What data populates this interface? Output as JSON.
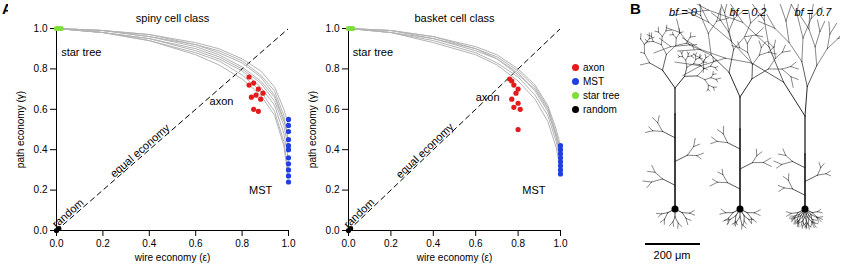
{
  "chart_data": [
    {
      "type": "scatter",
      "title": "spiny cell class",
      "x_label": "wire economy (ε)",
      "y_label": "path economy (γ)",
      "xlim": [
        0,
        1
      ],
      "ylim": [
        0,
        1
      ],
      "xticks": [
        {
          "value": 0,
          "label": "0.0"
        },
        {
          "value": 0.2,
          "label": "0.2"
        },
        {
          "value": 0.4,
          "label": "0.4"
        },
        {
          "value": 0.6,
          "label": "0.6"
        },
        {
          "value": 0.8,
          "label": "0.8"
        },
        {
          "value": 1,
          "label": "1.0"
        }
      ],
      "yticks": [
        {
          "value": 0,
          "label": "0.0"
        },
        {
          "value": 0.2,
          "label": "0.2"
        },
        {
          "value": 0.4,
          "label": "0.4"
        },
        {
          "value": 0.6,
          "label": "0.6"
        },
        {
          "value": 0.8,
          "label": "0.8"
        },
        {
          "value": 1,
          "label": "1.0"
        }
      ],
      "series": [
        {
          "type": "line",
          "color": "#000000",
          "line_style": "dashed",
          "x": [
            0,
            1
          ],
          "y": [
            0,
            1
          ]
        },
        {
          "type": "line",
          "color": "#b3b3b3",
          "x": [
            0,
            0.2,
            0.4,
            0.6,
            0.7,
            0.8,
            0.88,
            0.94,
            0.98,
            1
          ],
          "y": [
            1,
            0.99,
            0.97,
            0.93,
            0.9,
            0.85,
            0.79,
            0.71,
            0.6,
            0.52
          ]
        },
        {
          "type": "line",
          "color": "#b3b3b3",
          "x": [
            0,
            0.2,
            0.4,
            0.6,
            0.7,
            0.8,
            0.88,
            0.94,
            0.98,
            1
          ],
          "y": [
            1,
            0.99,
            0.96,
            0.92,
            0.88,
            0.83,
            0.76,
            0.67,
            0.55,
            0.45
          ]
        },
        {
          "type": "line",
          "color": "#b3b3b3",
          "x": [
            0,
            0.2,
            0.4,
            0.6,
            0.7,
            0.8,
            0.88,
            0.94,
            0.98,
            1
          ],
          "y": [
            1,
            0.98,
            0.95,
            0.9,
            0.86,
            0.8,
            0.73,
            0.64,
            0.52,
            0.4
          ]
        },
        {
          "type": "line",
          "color": "#b3b3b3",
          "x": [
            0,
            0.2,
            0.4,
            0.6,
            0.7,
            0.8,
            0.88,
            0.94,
            0.98,
            1
          ],
          "y": [
            1,
            0.98,
            0.95,
            0.89,
            0.85,
            0.79,
            0.71,
            0.62,
            0.48,
            0.35
          ]
        },
        {
          "type": "line",
          "color": "#b3b3b3",
          "x": [
            0,
            0.2,
            0.4,
            0.6,
            0.7,
            0.8,
            0.88,
            0.94,
            0.98,
            1
          ],
          "y": [
            1,
            0.98,
            0.94,
            0.88,
            0.84,
            0.77,
            0.69,
            0.59,
            0.44,
            0.28
          ]
        },
        {
          "type": "line",
          "color": "#b3b3b3",
          "x": [
            0,
            0.2,
            0.4,
            0.6,
            0.7,
            0.8,
            0.88,
            0.94,
            0.98,
            1
          ],
          "y": [
            1,
            0.99,
            0.96,
            0.91,
            0.87,
            0.81,
            0.74,
            0.66,
            0.54,
            0.48
          ]
        },
        {
          "type": "line",
          "color": "#b3b3b3",
          "x": [
            0,
            0.2,
            0.4,
            0.6,
            0.7,
            0.8,
            0.88,
            0.94,
            0.98,
            1
          ],
          "y": [
            1,
            0.98,
            0.94,
            0.87,
            0.82,
            0.75,
            0.67,
            0.57,
            0.42,
            0.24
          ]
        },
        {
          "type": "line",
          "color": "#b3b3b3",
          "x": [
            0,
            0.2,
            0.4,
            0.6,
            0.7,
            0.8,
            0.88,
            0.94,
            0.98,
            1
          ],
          "y": [
            1,
            0.99,
            0.97,
            0.92,
            0.89,
            0.84,
            0.77,
            0.69,
            0.57,
            0.43
          ]
        },
        {
          "name": "axon",
          "type": "scatter",
          "color": "#e41a1c",
          "x": [
            0.83,
            0.85,
            0.87,
            0.86,
            0.84,
            0.88,
            0.89,
            0.85,
            0.87,
            0.83
          ],
          "y": [
            0.76,
            0.73,
            0.7,
            0.67,
            0.66,
            0.65,
            0.68,
            0.6,
            0.59,
            0.72
          ]
        },
        {
          "name": "MST",
          "type": "scatter",
          "color": "#1f3fe0",
          "x": [
            1,
            1,
            1,
            1,
            1,
            1,
            1,
            1,
            1,
            1,
            1
          ],
          "y": [
            0.55,
            0.52,
            0.49,
            0.45,
            0.42,
            0.4,
            0.36,
            0.33,
            0.3,
            0.27,
            0.24
          ]
        },
        {
          "name": "star tree",
          "type": "scatter",
          "color": "#7ddf3a",
          "x": [
            0,
            0.01,
            0.02
          ],
          "y": [
            1,
            1,
            1
          ]
        },
        {
          "name": "random",
          "type": "scatter",
          "color": "#000000",
          "x": [
            0,
            0.01
          ],
          "y": [
            0,
            0.01
          ]
        }
      ],
      "annotations": [
        {
          "text": "star tree",
          "x": 0.02,
          "y": 0.88
        },
        {
          "text": "random",
          "x": 0.05,
          "y": 0.05
        },
        {
          "text": "axon",
          "x": 0.66,
          "y": 0.64
        },
        {
          "text": "MST",
          "x": 0.83,
          "y": 0.2
        },
        {
          "text": "equal economy",
          "x": 0.36,
          "y": 0.36
        }
      ]
    },
    {
      "type": "scatter",
      "title": "basket cell class",
      "x_label": "wire economy (ε)",
      "y_label": "path economy (γ)",
      "xlim": [
        0,
        1
      ],
      "ylim": [
        0,
        1
      ],
      "xticks": [
        {
          "value": 0,
          "label": "0.0"
        },
        {
          "value": 0.2,
          "label": "0.2"
        },
        {
          "value": 0.4,
          "label": "0.4"
        },
        {
          "value": 0.6,
          "label": "0.6"
        },
        {
          "value": 0.8,
          "label": "0.8"
        },
        {
          "value": 1,
          "label": "1.0"
        }
      ],
      "yticks": [
        {
          "value": 0,
          "label": "0.0"
        },
        {
          "value": 0.2,
          "label": "0.2"
        },
        {
          "value": 0.4,
          "label": "0.4"
        },
        {
          "value": 0.6,
          "label": "0.6"
        },
        {
          "value": 0.8,
          "label": "0.8"
        },
        {
          "value": 1,
          "label": "1.0"
        }
      ],
      "legend": "right",
      "series": [
        {
          "type": "line",
          "color": "#000000",
          "line_style": "dashed",
          "x": [
            0,
            1
          ],
          "y": [
            0,
            1
          ]
        },
        {
          "type": "line",
          "color": "#b3b3b3",
          "x": [
            0,
            0.2,
            0.4,
            0.6,
            0.7,
            0.8,
            0.88,
            0.94,
            0.98,
            1
          ],
          "y": [
            1,
            0.99,
            0.96,
            0.91,
            0.87,
            0.8,
            0.72,
            0.62,
            0.5,
            0.42
          ]
        },
        {
          "type": "line",
          "color": "#b3b3b3",
          "x": [
            0,
            0.2,
            0.4,
            0.6,
            0.7,
            0.8,
            0.88,
            0.94,
            0.98,
            1
          ],
          "y": [
            1,
            0.98,
            0.95,
            0.89,
            0.85,
            0.78,
            0.69,
            0.59,
            0.47,
            0.38
          ]
        },
        {
          "type": "line",
          "color": "#b3b3b3",
          "x": [
            0,
            0.2,
            0.4,
            0.6,
            0.7,
            0.8,
            0.88,
            0.94,
            0.98,
            1
          ],
          "y": [
            1,
            0.98,
            0.94,
            0.88,
            0.83,
            0.76,
            0.67,
            0.57,
            0.44,
            0.34
          ]
        },
        {
          "type": "line",
          "color": "#b3b3b3",
          "x": [
            0,
            0.2,
            0.4,
            0.6,
            0.7,
            0.8,
            0.88,
            0.94,
            0.98,
            1
          ],
          "y": [
            1,
            0.99,
            0.96,
            0.9,
            0.86,
            0.79,
            0.71,
            0.61,
            0.48,
            0.4
          ]
        },
        {
          "type": "line",
          "color": "#b3b3b3",
          "x": [
            0,
            0.2,
            0.4,
            0.6,
            0.7,
            0.8,
            0.88,
            0.94,
            0.98,
            1
          ],
          "y": [
            1,
            0.98,
            0.93,
            0.87,
            0.82,
            0.74,
            0.65,
            0.54,
            0.41,
            0.3
          ]
        },
        {
          "type": "line",
          "color": "#b3b3b3",
          "x": [
            0,
            0.2,
            0.4,
            0.6,
            0.7,
            0.8,
            0.88,
            0.94,
            0.98,
            1
          ],
          "y": [
            1,
            0.99,
            0.95,
            0.9,
            0.85,
            0.77,
            0.7,
            0.6,
            0.46,
            0.36
          ]
        },
        {
          "name": "axon",
          "type": "scatter",
          "color": "#e41a1c",
          "x": [
            0.76,
            0.78,
            0.8,
            0.79,
            0.77,
            0.8,
            0.78,
            0.81,
            0.8,
            0.77
          ],
          "y": [
            0.75,
            0.72,
            0.7,
            0.68,
            0.65,
            0.63,
            0.61,
            0.6,
            0.5,
            0.74
          ]
        },
        {
          "name": "MST",
          "type": "scatter",
          "color": "#1f3fe0",
          "x": [
            1,
            1,
            1,
            1,
            1,
            1,
            1,
            1
          ],
          "y": [
            0.42,
            0.4,
            0.38,
            0.36,
            0.34,
            0.32,
            0.3,
            0.28
          ]
        },
        {
          "name": "star tree",
          "type": "scatter",
          "color": "#7ddf3a",
          "x": [
            0,
            0.01,
            0.02
          ],
          "y": [
            1,
            1,
            1
          ]
        },
        {
          "name": "random",
          "type": "scatter",
          "color": "#000000",
          "x": [
            0,
            0.01
          ],
          "y": [
            0,
            0.01
          ]
        }
      ],
      "annotations": [
        {
          "text": "star tree",
          "x": 0.02,
          "y": 0.88
        },
        {
          "text": "random",
          "x": 0.05,
          "y": 0.05
        },
        {
          "text": "axon",
          "x": 0.6,
          "y": 0.66
        },
        {
          "text": "MST",
          "x": 0.82,
          "y": 0.2
        },
        {
          "text": "equal economy",
          "x": 0.36,
          "y": 0.36
        }
      ]
    }
  ],
  "panel_labels": [
    "A",
    "B"
  ],
  "morphology": {
    "labels": [
      "bf = 0",
      "bf = 0.2",
      "bf = 0.7"
    ],
    "scale_bar": "200 μm"
  }
}
